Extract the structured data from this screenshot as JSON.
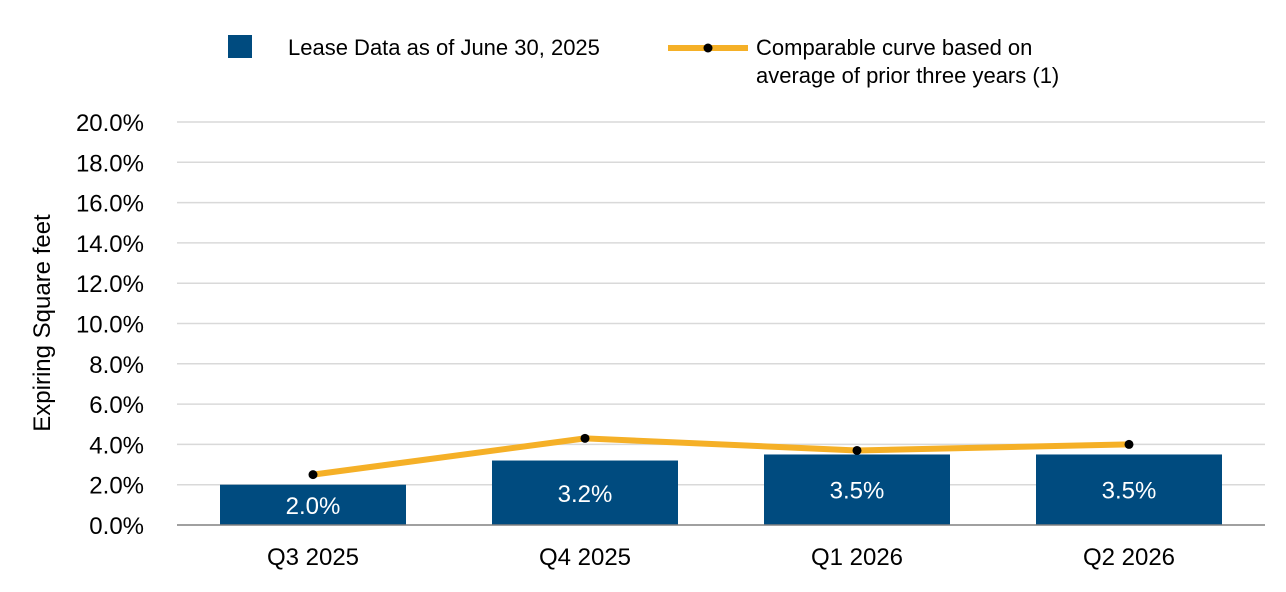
{
  "chart_data": {
    "type": "bar",
    "title": "",
    "xlabel": "",
    "ylabel": "Expiring Square feet",
    "ylim": [
      0,
      20
    ],
    "yticks": [
      "0.0%",
      "2.0%",
      "4.0%",
      "6.0%",
      "8.0%",
      "10.0%",
      "12.0%",
      "14.0%",
      "16.0%",
      "18.0%",
      "20.0%"
    ],
    "categories": [
      "Q3 2025",
      "Q4 2025",
      "Q1 2026",
      "Q2 2026"
    ],
    "grid": true,
    "legend_position": "top",
    "series": [
      {
        "name": "Lease Data as of June 30, 2025",
        "kind": "bar",
        "color": "#004b7f",
        "values": [
          2.0,
          3.2,
          3.5,
          3.5
        ],
        "data_labels": [
          "2.0%",
          "3.2%",
          "3.5%",
          "3.5%"
        ]
      },
      {
        "name": "Comparable curve based on average of prior three years (1)",
        "name_lines": [
          "Comparable curve based on",
          "average of prior three years (1)"
        ],
        "kind": "line",
        "color": "#f5b027",
        "marker_color": "#000000",
        "values": [
          2.5,
          4.3,
          3.7,
          4.0
        ]
      }
    ]
  }
}
